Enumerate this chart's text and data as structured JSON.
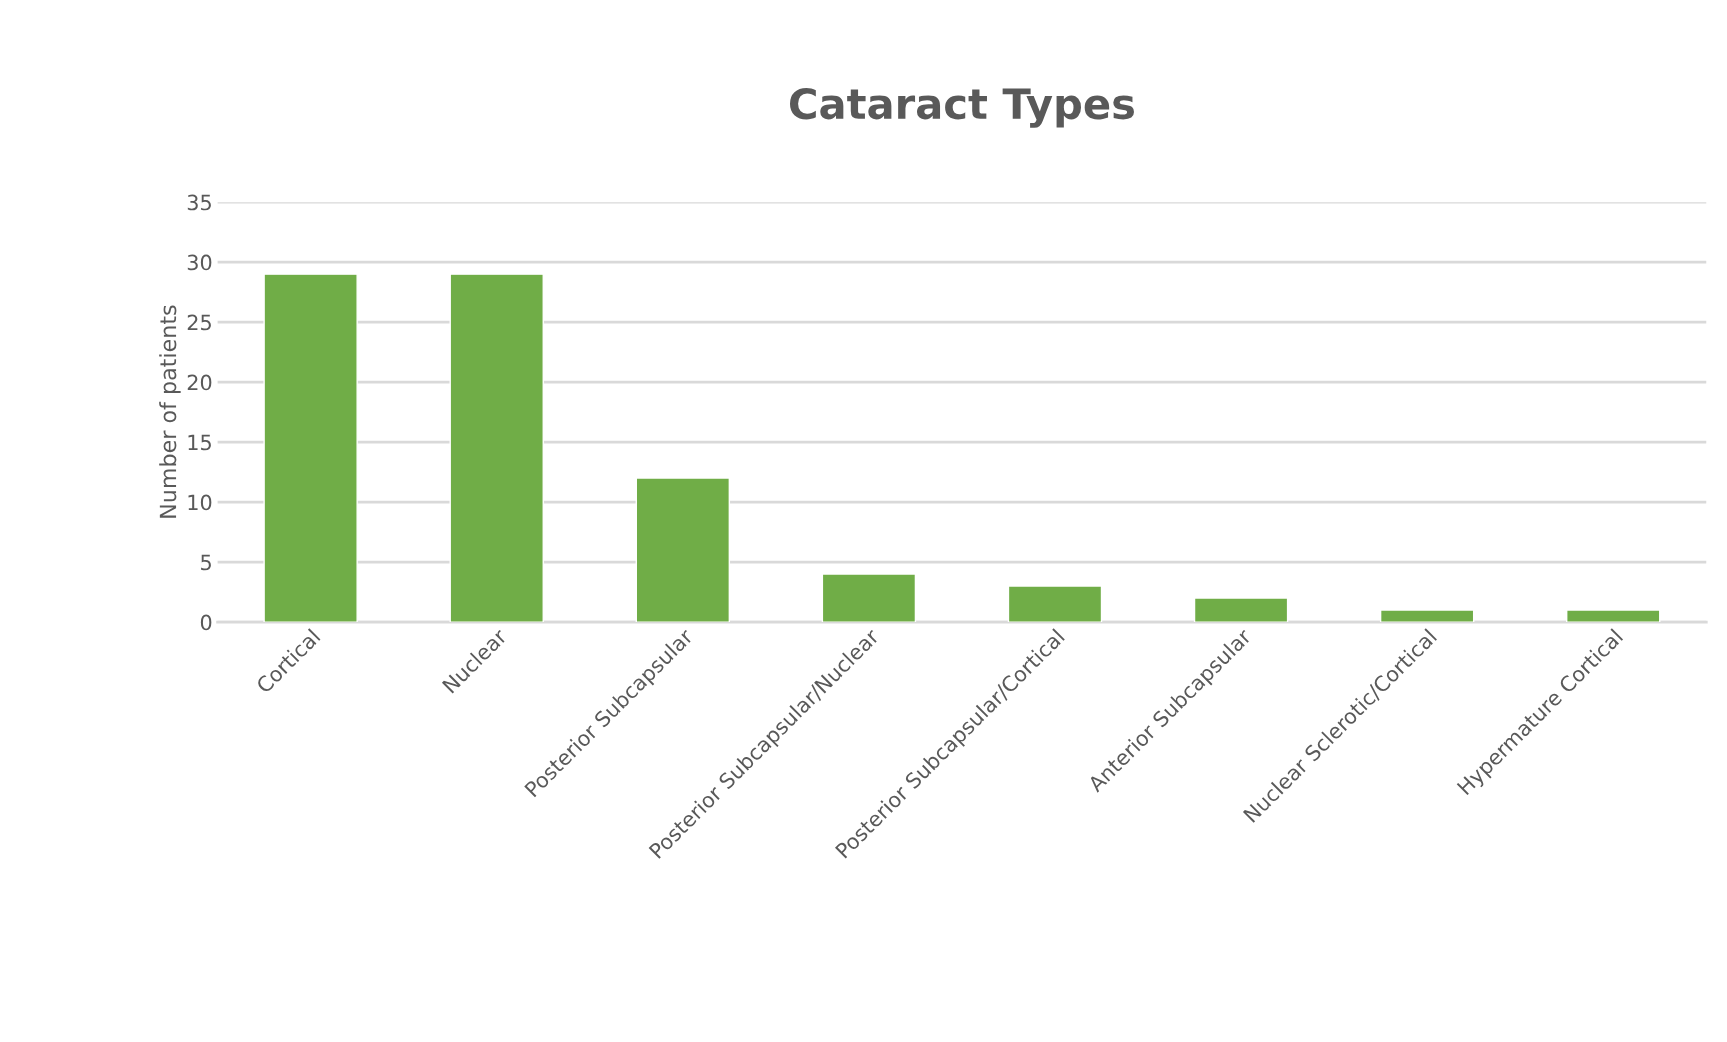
{
  "chart_data": {
    "type": "bar",
    "title": "Cataract Types",
    "ylabel": "Number of patients",
    "categories": [
      "Cortical",
      "Nuclear",
      "Posterior Subcapsular",
      "Posterior Subcapsular/Nuclear",
      "Posterior Subcapsular/Cortical",
      "Anterior Subcapsular",
      "Nuclear Sclerotic/Cortical",
      "Hypermature Cortical"
    ],
    "values": [
      29,
      29,
      12,
      4,
      3,
      2,
      1,
      1
    ],
    "color": "#70ad47",
    "ylim": [
      0,
      35
    ],
    "yticks": [
      0,
      5,
      10,
      15,
      20,
      25,
      30,
      35
    ],
    "grid": "y",
    "legend": false
  }
}
